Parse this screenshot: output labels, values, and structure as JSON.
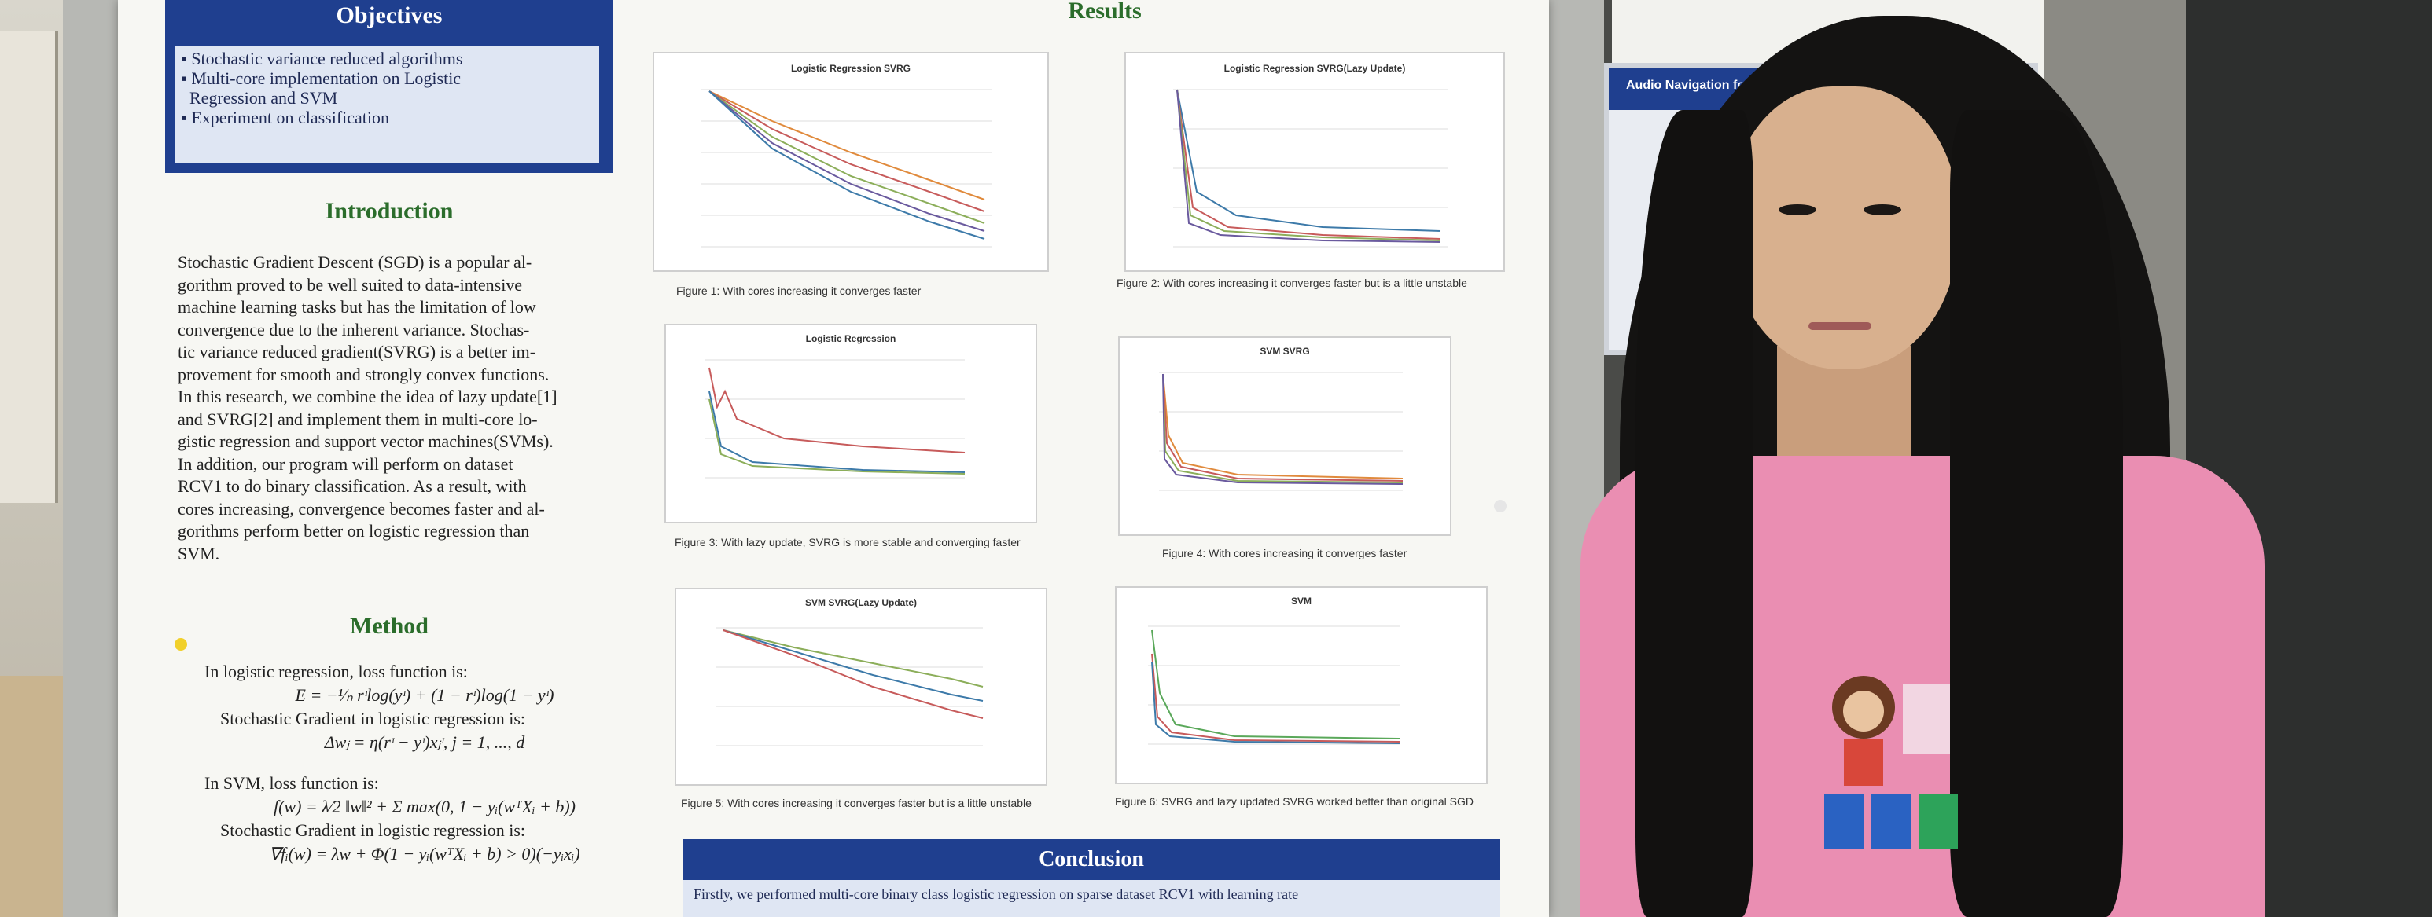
{
  "poster": {
    "objectives": {
      "title": "Objectives",
      "items": [
        "Stochastic variance reduced algorithms",
        "Multi-core implementation on Logistic",
        "Regression and SVM",
        "Experiment on classification"
      ]
    },
    "introduction": {
      "title": "Introduction",
      "lines": [
        "Stochastic Gradient Descent (SGD) is a popular al-",
        "gorithm proved to be well suited to data-intensive",
        "machine learning tasks but has the limitation of low",
        "convergence due to the inherent variance. Stochas-",
        "tic variance reduced gradient(SVRG) is a better im-",
        "provement for smooth and strongly convex functions.",
        "In this research, we combine the idea of lazy update[1]",
        "and SVRG[2] and implement them in multi-core lo-",
        "gistic regression and support vector machines(SVMs).",
        "In addition, our program will perform on dataset",
        "RCV1 to do binary classification. As a result, with",
        "cores increasing, convergence becomes faster and al-",
        "gorithms perform better on logistic regression than",
        "SVM."
      ]
    },
    "method": {
      "title": "Method",
      "lr_heading": "In logistic regression, loss function is:",
      "lr_loss": "E = −¹⁄ₙ rᶦlog(yᶦ) + (1 − rᶦ)log(1 − yᶦ)",
      "lr_grad_label": "Stochastic Gradient in logistic regression is:",
      "lr_grad": "Δwⱼ = η(rᶦ − yᶦ)xⱼᶦ, j = 1, ..., d",
      "svm_heading": "In SVM, loss function is:",
      "svm_loss": "f(w) = λ⁄2 ‖w‖² + Σ max(0, 1 − yᵢ(wᵀXᵢ + b))",
      "svm_grad_label": "Stochastic Gradient in logistic regression is:",
      "svm_grad": "∇fᵢ(w) = λw + Φ(1 − yᵢ(wᵀXᵢ + b) > 0)(−yᵢxᵢ)"
    },
    "results": {
      "title": "Results",
      "figures": [
        {
          "chart_title": "Logistic Regression SVRG",
          "caption": "Figure 1: With cores increasing it converges faster"
        },
        {
          "chart_title": "Logistic Regression SVRG(Lazy Update)",
          "caption": "Figure 2: With cores increasing it converges faster but is a little unstable"
        },
        {
          "chart_title": "Logistic Regression",
          "caption": "Figure 3: With lazy update, SVRG is more stable and converging faster"
        },
        {
          "chart_title": "SVM SVRG",
          "caption": "Figure 4: With cores increasing it converges faster"
        },
        {
          "chart_title": "SVM SVRG(Lazy Update)",
          "caption": "Figure 5: With cores increasing it converges faster but is a little unstable"
        },
        {
          "chart_title": "SVM",
          "caption": "Figure 6: SVRG and lazy updated SVRG worked better than original SGD"
        }
      ]
    },
    "conclusion": {
      "title": "Conclusion",
      "text": "Firstly, we performed multi-core binary class logistic regression on sparse dataset RCV1 with learning rate"
    },
    "colors": {
      "banner": "#1f3f8f",
      "section_title": "#2b6d2b",
      "list_bg": "#dfe6f3"
    }
  },
  "scene": {
    "background_poster_title": "Audio Navigation for the Blind"
  }
}
